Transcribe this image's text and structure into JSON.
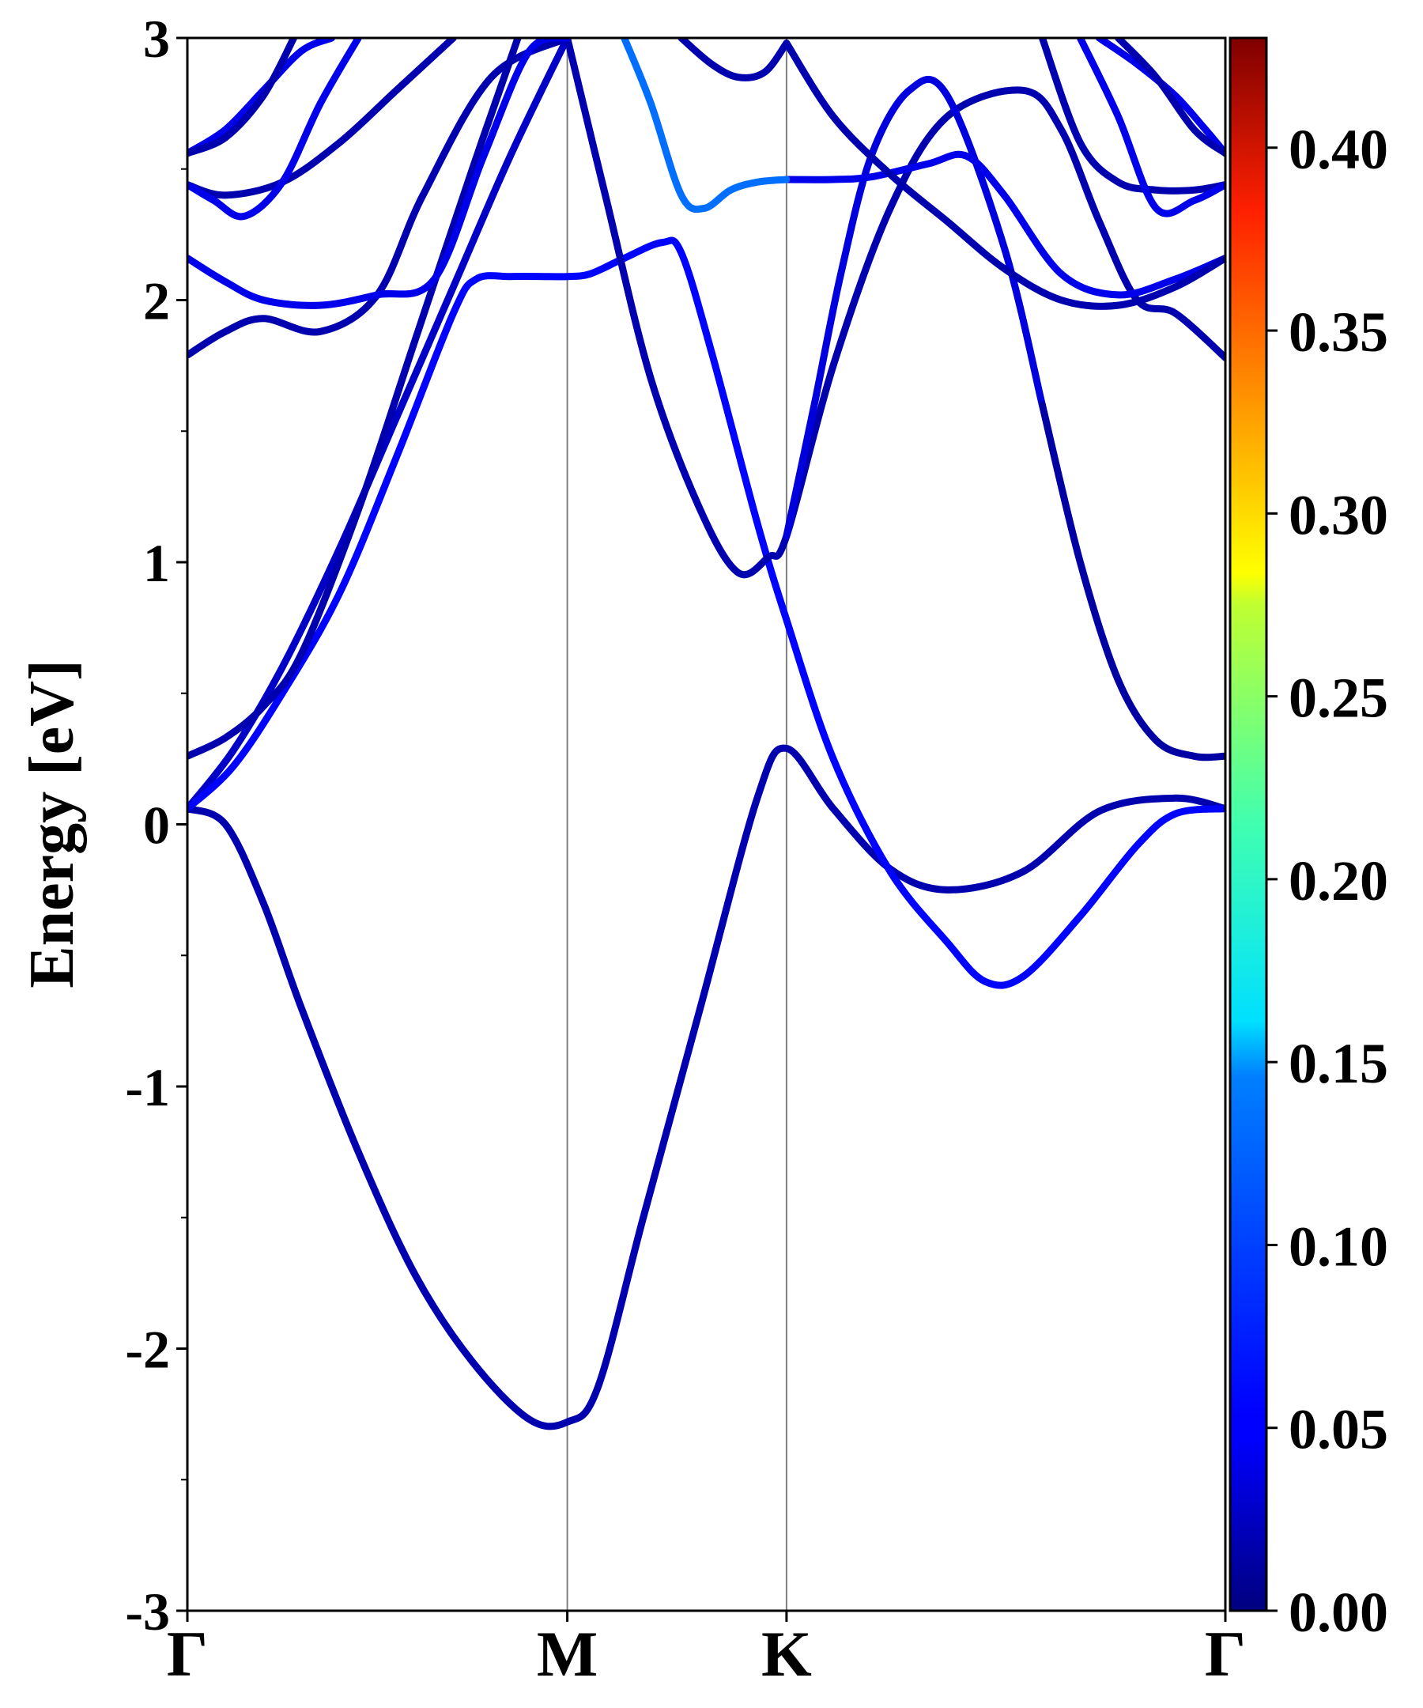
{
  "chart_data": {
    "type": "line",
    "xlabel": "",
    "ylabel": "Energy [eV]",
    "ylim": [
      -3,
      3
    ],
    "y_ticks": [
      "-3",
      "-2",
      "-1",
      "0",
      "1",
      "2",
      "3"
    ],
    "y_tick_values": [
      -3,
      -2,
      -1,
      0,
      1,
      2,
      3
    ],
    "y_minor_tick_values": [
      -2.5,
      -1.5,
      -0.5,
      0.5,
      1.5,
      2.5
    ],
    "k_points": [
      {
        "label": "Γ",
        "position": 0.0
      },
      {
        "label": "M",
        "position": 1.0
      },
      {
        "label": "K",
        "position": 1.577
      },
      {
        "label": "Γ",
        "position": 2.732
      }
    ],
    "xlim": [
      0,
      2.732
    ],
    "colorbar": {
      "range": [
        0.0,
        0.43
      ],
      "colormap": "jet",
      "ticks": [
        "0.00",
        "0.05",
        "0.10",
        "0.15",
        "0.20",
        "0.25",
        "0.30",
        "0.35",
        "0.40"
      ],
      "tick_values": [
        0.0,
        0.05,
        0.1,
        0.15,
        0.2,
        0.25,
        0.3,
        0.35,
        0.4
      ]
    },
    "grid": false,
    "series": [
      {
        "weight": 0.02,
        "x": [
          0,
          0.1,
          0.2,
          0.3,
          0.45,
          0.6,
          0.75,
          0.9,
          1.0,
          1.08,
          1.2,
          1.35,
          1.5,
          1.577,
          1.7,
          1.85,
          2.0,
          2.2,
          2.4,
          2.6,
          2.732
        ],
        "y": [
          0.06,
          0.0,
          -0.3,
          -0.7,
          -1.25,
          -1.72,
          -2.05,
          -2.27,
          -2.28,
          -2.15,
          -1.5,
          -0.7,
          0.1,
          0.29,
          0.06,
          -0.17,
          -0.25,
          -0.18,
          0.05,
          0.1,
          0.06
        ]
      },
      {
        "weight": 0.03,
        "x": [
          0,
          0.12,
          0.25,
          0.4,
          0.55,
          0.7,
          0.85,
          1.0
        ],
        "y": [
          0.06,
          0.28,
          0.6,
          1.05,
          1.55,
          2.05,
          2.55,
          3.0
        ]
      },
      {
        "weight": 0.055,
        "x": [
          0,
          0.12,
          0.25,
          0.4,
          0.55,
          0.7,
          0.76,
          0.85,
          0.95,
          1.0,
          1.06,
          1.15,
          1.25,
          1.3,
          1.38,
          1.5,
          1.577,
          1.7,
          1.85,
          2.0,
          2.1,
          2.2,
          2.35,
          2.5,
          2.6,
          2.732
        ],
        "y": [
          0.06,
          0.22,
          0.5,
          0.88,
          1.4,
          1.95,
          2.08,
          2.09,
          2.09,
          2.09,
          2.1,
          2.16,
          2.22,
          2.18,
          1.8,
          1.15,
          0.78,
          0.25,
          -0.18,
          -0.45,
          -0.6,
          -0.58,
          -0.35,
          -0.08,
          0.04,
          0.06
        ]
      },
      {
        "weight": 0.02,
        "x": [
          0,
          0.1,
          0.2,
          0.3,
          0.45,
          0.6,
          0.75,
          0.87
        ],
        "y": [
          0.26,
          0.33,
          0.45,
          0.65,
          1.2,
          1.85,
          2.5,
          3.0
        ]
      },
      {
        "weight": 0.02,
        "x": [
          1.0,
          1.1,
          1.22,
          1.35,
          1.45,
          1.53,
          1.577,
          1.7,
          1.85,
          2.0,
          2.2,
          2.3,
          2.4,
          2.5,
          2.6,
          2.732
        ],
        "y": [
          3.0,
          2.4,
          1.7,
          1.2,
          0.96,
          1.02,
          1.1,
          1.75,
          2.35,
          2.7,
          2.8,
          2.65,
          2.3,
          2.0,
          1.95,
          1.78
        ]
      },
      {
        "weight": 0.04,
        "x": [
          1.577,
          1.65,
          1.72,
          1.8,
          1.9,
          2.0,
          2.15,
          2.25
        ],
        "y": [
          1.1,
          1.6,
          2.1,
          2.55,
          2.8,
          2.78,
          2.2,
          1.6
        ]
      },
      {
        "weight": 0.015,
        "x": [
          2.25,
          2.35,
          2.45,
          2.55,
          2.65,
          2.732
        ],
        "y": [
          1.6,
          1.0,
          0.55,
          0.32,
          0.26,
          0.26
        ]
      },
      {
        "weight": 0.02,
        "x": [
          0,
          0.1,
          0.2,
          0.35,
          0.5,
          0.62,
          0.8,
          1.0
        ],
        "y": [
          1.79,
          1.88,
          1.93,
          1.88,
          2.02,
          2.4,
          2.85,
          3.0
        ]
      },
      {
        "weight": 0.045,
        "x": [
          0,
          0.1,
          0.2,
          0.35,
          0.5,
          0.65,
          0.78,
          0.9,
          1.0
        ],
        "y": [
          2.16,
          2.07,
          2.0,
          1.98,
          2.02,
          2.08,
          2.55,
          2.95,
          3.0
        ]
      },
      {
        "weight": 0.045,
        "x": [
          1.577,
          1.7,
          1.8,
          1.95,
          2.05,
          2.15,
          2.3,
          2.45,
          2.6,
          2.732
        ],
        "y": [
          2.46,
          2.46,
          2.47,
          2.52,
          2.55,
          2.4,
          2.1,
          2.02,
          2.08,
          2.16
        ]
      },
      {
        "weight": 0.1,
        "x": [
          1.15,
          1.22,
          1.3,
          1.36,
          1.43,
          1.5,
          1.577
        ],
        "y": [
          3.0,
          2.75,
          2.4,
          2.35,
          2.42,
          2.45,
          2.46
        ]
      },
      {
        "weight": 0.02,
        "x": [
          0,
          0.1,
          0.25,
          0.4,
          0.55,
          0.7
        ],
        "y": [
          2.44,
          2.4,
          2.45,
          2.6,
          2.8,
          3.0
        ]
      },
      {
        "weight": 0.045,
        "x": [
          0,
          0.07,
          0.15,
          0.25,
          0.35,
          0.45
        ],
        "y": [
          2.44,
          2.38,
          2.32,
          2.45,
          2.75,
          3.0
        ]
      },
      {
        "weight": 0.045,
        "x": [
          0,
          0.1,
          0.2,
          0.3,
          0.38
        ],
        "y": [
          2.56,
          2.65,
          2.8,
          2.95,
          3.0
        ]
      },
      {
        "weight": 0.02,
        "x": [
          0,
          0.1,
          0.2,
          0.28
        ],
        "y": [
          2.56,
          2.62,
          2.78,
          3.0
        ]
      },
      {
        "weight": 0.02,
        "x": [
          1.577,
          1.7,
          1.85,
          2.0,
          2.15,
          2.3,
          2.45,
          2.6,
          2.732
        ],
        "y": [
          2.98,
          2.7,
          2.48,
          2.3,
          2.12,
          2.0,
          1.98,
          2.05,
          2.16
        ]
      },
      {
        "weight": 0.02,
        "x": [
          1.3,
          1.38,
          1.45,
          1.52,
          1.577
        ],
        "y": [
          3.0,
          2.9,
          2.85,
          2.87,
          2.98
        ]
      },
      {
        "weight": 0.02,
        "x": [
          2.25,
          2.35,
          2.45,
          2.55,
          2.65,
          2.732
        ],
        "y": [
          3.0,
          2.6,
          2.45,
          2.42,
          2.42,
          2.44
        ]
      },
      {
        "weight": 0.045,
        "x": [
          2.35,
          2.45,
          2.55,
          2.65,
          2.732
        ],
        "y": [
          3.0,
          2.7,
          2.35,
          2.38,
          2.44
        ]
      },
      {
        "weight": 0.045,
        "x": [
          2.4,
          2.5,
          2.6,
          2.68,
          2.732
        ],
        "y": [
          3.0,
          2.9,
          2.78,
          2.65,
          2.56
        ]
      },
      {
        "weight": 0.02,
        "x": [
          2.45,
          2.55,
          2.65,
          2.732
        ],
        "y": [
          3.0,
          2.85,
          2.65,
          2.56
        ]
      }
    ]
  }
}
